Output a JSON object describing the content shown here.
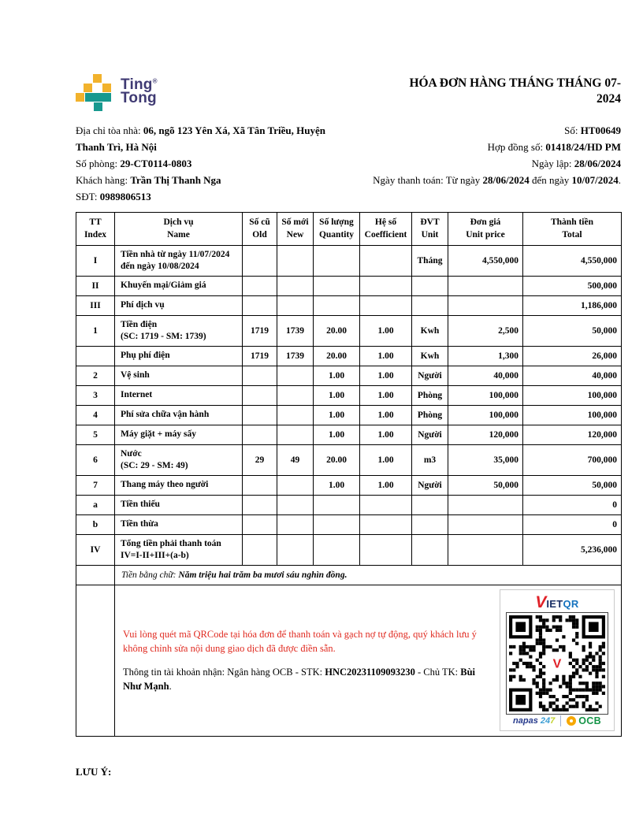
{
  "logo": {
    "word1": "Ting",
    "reg": "®",
    "word2": "Tong"
  },
  "title": "HÓA ĐƠN HÀNG THÁNG THÁNG 07-2024",
  "info": {
    "address_label": "Địa chỉ tòa nhà: ",
    "address_value": "06, ngõ 123 Yên Xá, Xã Tân Triều, Huyện Thanh Trì, Hà Nội",
    "room_label": "Số phòng: ",
    "room_value": "29-CT0114-0803",
    "customer_label": "Khách hàng: ",
    "customer_value": "Trần Thị Thanh Nga",
    "phone_label": "SĐT: ",
    "phone_value": "0989806513",
    "number_label": "Số: ",
    "number_value": "HT00649",
    "contract_label": "Hợp đồng số: ",
    "contract_value": "01418/24/HD PM",
    "issue_label": "Ngày lập: ",
    "issue_value": "28/06/2024",
    "payment_prefix": "Ngày thanh toán: Từ ngày ",
    "payment_from": "28/06/2024",
    "payment_mid": " đến ngày ",
    "payment_to": "10/07/2024",
    "payment_suffix": "."
  },
  "table": {
    "headers": [
      {
        "vi": "TT",
        "en": "Index"
      },
      {
        "vi": "Dịch vụ",
        "en": "Name"
      },
      {
        "vi": "Số cũ",
        "en": "Old"
      },
      {
        "vi": "Số mới",
        "en": "New"
      },
      {
        "vi": "Số lượng",
        "en": "Quantity"
      },
      {
        "vi": "Hệ số",
        "en": "Coefficient"
      },
      {
        "vi": "ĐVT",
        "en": "Unit"
      },
      {
        "vi": "Đơn giá",
        "en": "Unit price"
      },
      {
        "vi": "Thành tiền",
        "en": "Total"
      }
    ],
    "rows": [
      [
        "I",
        "Tiền nhà từ ngày 11/07/2024\nđến ngày 10/08/2024",
        "",
        "",
        "",
        "",
        "Tháng",
        "4,550,000",
        "4,550,000"
      ],
      [
        "II",
        "Khuyến mại/Giảm giá",
        "",
        "",
        "",
        "",
        "",
        "",
        "500,000"
      ],
      [
        "III",
        "Phí dịch vụ",
        "",
        "",
        "",
        "",
        "",
        "",
        "1,186,000"
      ],
      [
        "1",
        "Tiền điện\n(SC: 1719 - SM: 1739)",
        "1719",
        "1739",
        "20.00",
        "1.00",
        "Kwh",
        "2,500",
        "50,000"
      ],
      [
        "",
        "Phụ phí điện",
        "1719",
        "1739",
        "20.00",
        "1.00",
        "Kwh",
        "1,300",
        "26,000"
      ],
      [
        "2",
        "Vệ sinh",
        "",
        "",
        "1.00",
        "1.00",
        "Người",
        "40,000",
        "40,000"
      ],
      [
        "3",
        "Internet",
        "",
        "",
        "1.00",
        "1.00",
        "Phòng",
        "100,000",
        "100,000"
      ],
      [
        "4",
        "Phí sửa chữa vận hành",
        "",
        "",
        "1.00",
        "1.00",
        "Phòng",
        "100,000",
        "100,000"
      ],
      [
        "5",
        "Máy giặt + máy sấy",
        "",
        "",
        "1.00",
        "1.00",
        "Người",
        "120,000",
        "120,000"
      ],
      [
        "6",
        "Nước\n(SC: 29 - SM: 49)",
        "29",
        "49",
        "20.00",
        "1.00",
        "m3",
        "35,000",
        "700,000"
      ],
      [
        "7",
        "Thang máy theo người",
        "",
        "",
        "1.00",
        "1.00",
        "Người",
        "50,000",
        "50,000"
      ],
      [
        "a",
        "Tiền thiếu",
        "",
        "",
        "",
        "",
        "",
        "",
        "0"
      ],
      [
        "b",
        "Tiền thừa",
        "",
        "",
        "",
        "",
        "",
        "",
        "0"
      ],
      [
        "IV",
        "Tổng tiền phải thanh toán\nIV=I-II+III+(a-b)",
        "",
        "",
        "",
        "",
        "",
        "",
        "5,236,000"
      ]
    ],
    "amount_in_words_label": "Tiền bằng chữ: ",
    "amount_in_words": "Năm triệu hai trăm ba mươi sáu nghìn đồng."
  },
  "payment_section": {
    "qr_note": "Vui lòng quét mã QRCode tại hóa đơn để thanh toán và gạch nợ tự động, quý khách lưu ý không chỉnh sửa nội dung giao dịch đã được điền sẵn.",
    "account_prefix": "Thông tin tài khoản nhận: Ngân hàng OCB - STK: ",
    "account_number": "HNC20231109093230",
    "account_mid": " - Chủ TK: ",
    "account_holder": "Bùi Như Mạnh",
    "account_suffix": ".",
    "vietqr_v": "V",
    "vietqr_iet": "IET",
    "vietqr_qr": "QR",
    "qr_center_letter": "V",
    "napas_word": "napas",
    "napas_24": "24",
    "napas_7": "7",
    "ocb_name": "OCB"
  },
  "footer": {
    "note_label": "LƯU Ý:"
  },
  "colors": {
    "logo_yellow": "#f2b22c",
    "logo_teal": "#18998f",
    "logo_navy": "#3f3a73",
    "note_red": "#e02a20",
    "vietqr_red": "#e02128",
    "vietqr_navy": "#1a2f66",
    "vietqr_blue": "#1673bf",
    "napas_navy": "#263a8c",
    "napas_blue": "#3e9fd4",
    "napas_lime": "#c2d22e",
    "ocb_orange": "#f7a800",
    "ocb_green": "#159447"
  }
}
